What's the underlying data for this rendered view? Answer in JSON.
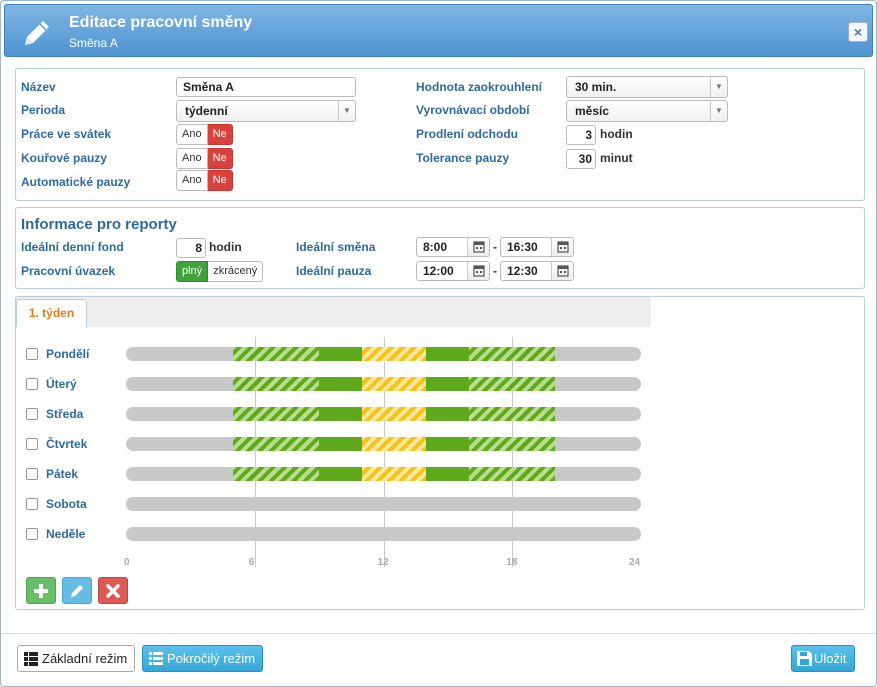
{
  "dialog": {
    "title": "Editace pracovní směny",
    "subtitle": "Směna A",
    "close_label": "×"
  },
  "general": {
    "name_label": "Název",
    "name_value": "Směna A",
    "period_label": "Perioda",
    "period_value": "týdenní",
    "holiday_label": "Práce ve svátek",
    "smoke_label": "Kouřové pauzy",
    "auto_label": "Automatické pauzy",
    "yes": "Ano",
    "no": "Ne",
    "rounding_label": "Hodnota zaokrouhlení",
    "rounding_value": "30 min.",
    "balance_label": "Vyrovnávací období",
    "balance_value": "měsíc",
    "delay_label": "Prodlení odchodu",
    "delay_value": "3",
    "delay_unit": "hodin",
    "tolerance_label": "Tolerance pauzy",
    "tolerance_value": "30",
    "tolerance_unit": "minut"
  },
  "reports": {
    "title": "Informace pro reporty",
    "fund_label": "Ideální denní fond",
    "fund_value": "8",
    "fund_unit": "hodin",
    "contract_label": "Pracovní úvazek",
    "contract_full": "plný",
    "contract_short": "zkrácený",
    "shift_label": "Ideální směna",
    "shift_from": "8:00",
    "shift_to": "16:30",
    "pause_label": "Ideální pauza",
    "pause_from": "12:00",
    "pause_to": "12:30",
    "dash": "-"
  },
  "week": {
    "tab_label": "1. týden",
    "days": [
      "Pondělí",
      "Úterý",
      "Středa",
      "Čtvrtek",
      "Pátek",
      "Sobota",
      "Neděle"
    ],
    "ticks": [
      "0",
      "6",
      "12",
      "18",
      "24"
    ],
    "axis_range_hours": [
      0,
      24
    ],
    "segments": [
      [
        {
          "type": "work",
          "from": 5,
          "to": 9
        },
        {
          "type": "solid",
          "from": 9,
          "to": 11
        },
        {
          "type": "pause",
          "from": 11,
          "to": 14
        },
        {
          "type": "solid",
          "from": 14,
          "to": 16
        },
        {
          "type": "work",
          "from": 16,
          "to": 20
        }
      ],
      [
        {
          "type": "work",
          "from": 5,
          "to": 9
        },
        {
          "type": "solid",
          "from": 9,
          "to": 11
        },
        {
          "type": "pause",
          "from": 11,
          "to": 14
        },
        {
          "type": "solid",
          "from": 14,
          "to": 16
        },
        {
          "type": "work",
          "from": 16,
          "to": 20
        }
      ],
      [
        {
          "type": "work",
          "from": 5,
          "to": 9
        },
        {
          "type": "solid",
          "from": 9,
          "to": 11
        },
        {
          "type": "pause",
          "from": 11,
          "to": 14
        },
        {
          "type": "solid",
          "from": 14,
          "to": 16
        },
        {
          "type": "work",
          "from": 16,
          "to": 20
        }
      ],
      [
        {
          "type": "work",
          "from": 5,
          "to": 9
        },
        {
          "type": "solid",
          "from": 9,
          "to": 11
        },
        {
          "type": "pause",
          "from": 11,
          "to": 14
        },
        {
          "type": "solid",
          "from": 14,
          "to": 16
        },
        {
          "type": "work",
          "from": 16,
          "to": 20
        }
      ],
      [
        {
          "type": "work",
          "from": 5,
          "to": 9
        },
        {
          "type": "solid",
          "from": 9,
          "to": 11
        },
        {
          "type": "pause",
          "from": 11,
          "to": 14
        },
        {
          "type": "solid",
          "from": 14,
          "to": 16
        },
        {
          "type": "work",
          "from": 16,
          "to": 20
        }
      ],
      [],
      []
    ],
    "colors": {
      "work": "#5ea91c",
      "pause": "#f2c41a",
      "track": "#c8c8c8"
    }
  },
  "actions": {
    "add_icon": "plus-icon",
    "edit_icon": "pencil-icon",
    "delete_icon": "x-icon"
  },
  "footer": {
    "basic_mode": "Základní režim",
    "advanced_mode": "Pokročilý režim",
    "save": "Uložit"
  }
}
